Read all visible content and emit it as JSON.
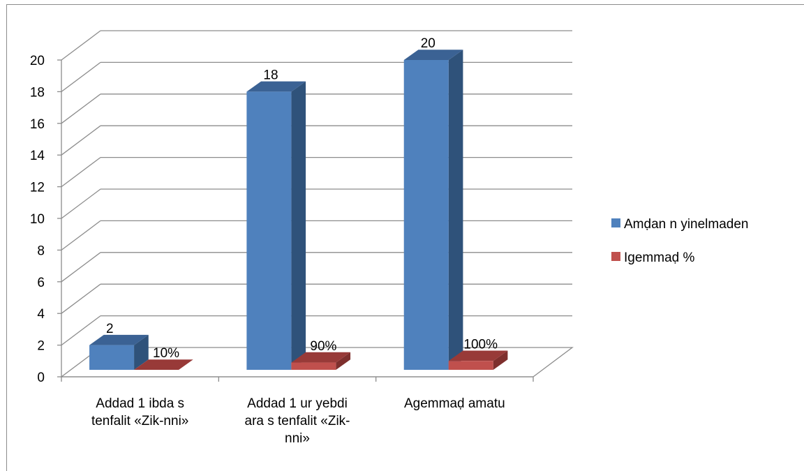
{
  "chart_data": {
    "type": "bar",
    "categories": [
      [
        "Addad 1 ibda s",
        "tenfalit «Zik-nni»"
      ],
      [
        "Addad 1 ur yebdi",
        "ara s tenfalit «Zik-",
        "nni»"
      ],
      [
        "Agemmaḍ amatu"
      ]
    ],
    "series": [
      {
        "name": "Amḍan n yinelmaden",
        "values": [
          2,
          18,
          20
        ],
        "labels": [
          "2",
          "18",
          "20"
        ],
        "color": "#4f81bd",
        "side_color": "#2f527a",
        "top_color": "#3b6294"
      },
      {
        "name": "Igemmaḍ %",
        "values": [
          0.1,
          0.9,
          1.0
        ],
        "labels": [
          "10%",
          "90%",
          "100%"
        ],
        "color": "#c0504d",
        "side_color": "#7e2f2d",
        "top_color": "#983a38"
      }
    ],
    "ylim": [
      0,
      20
    ],
    "yticks": [
      "0",
      "2",
      "4",
      "6",
      "8",
      "10",
      "12",
      "14",
      "16",
      "18",
      "20"
    ],
    "grid": true,
    "legend_position": "right",
    "three_d": true
  }
}
